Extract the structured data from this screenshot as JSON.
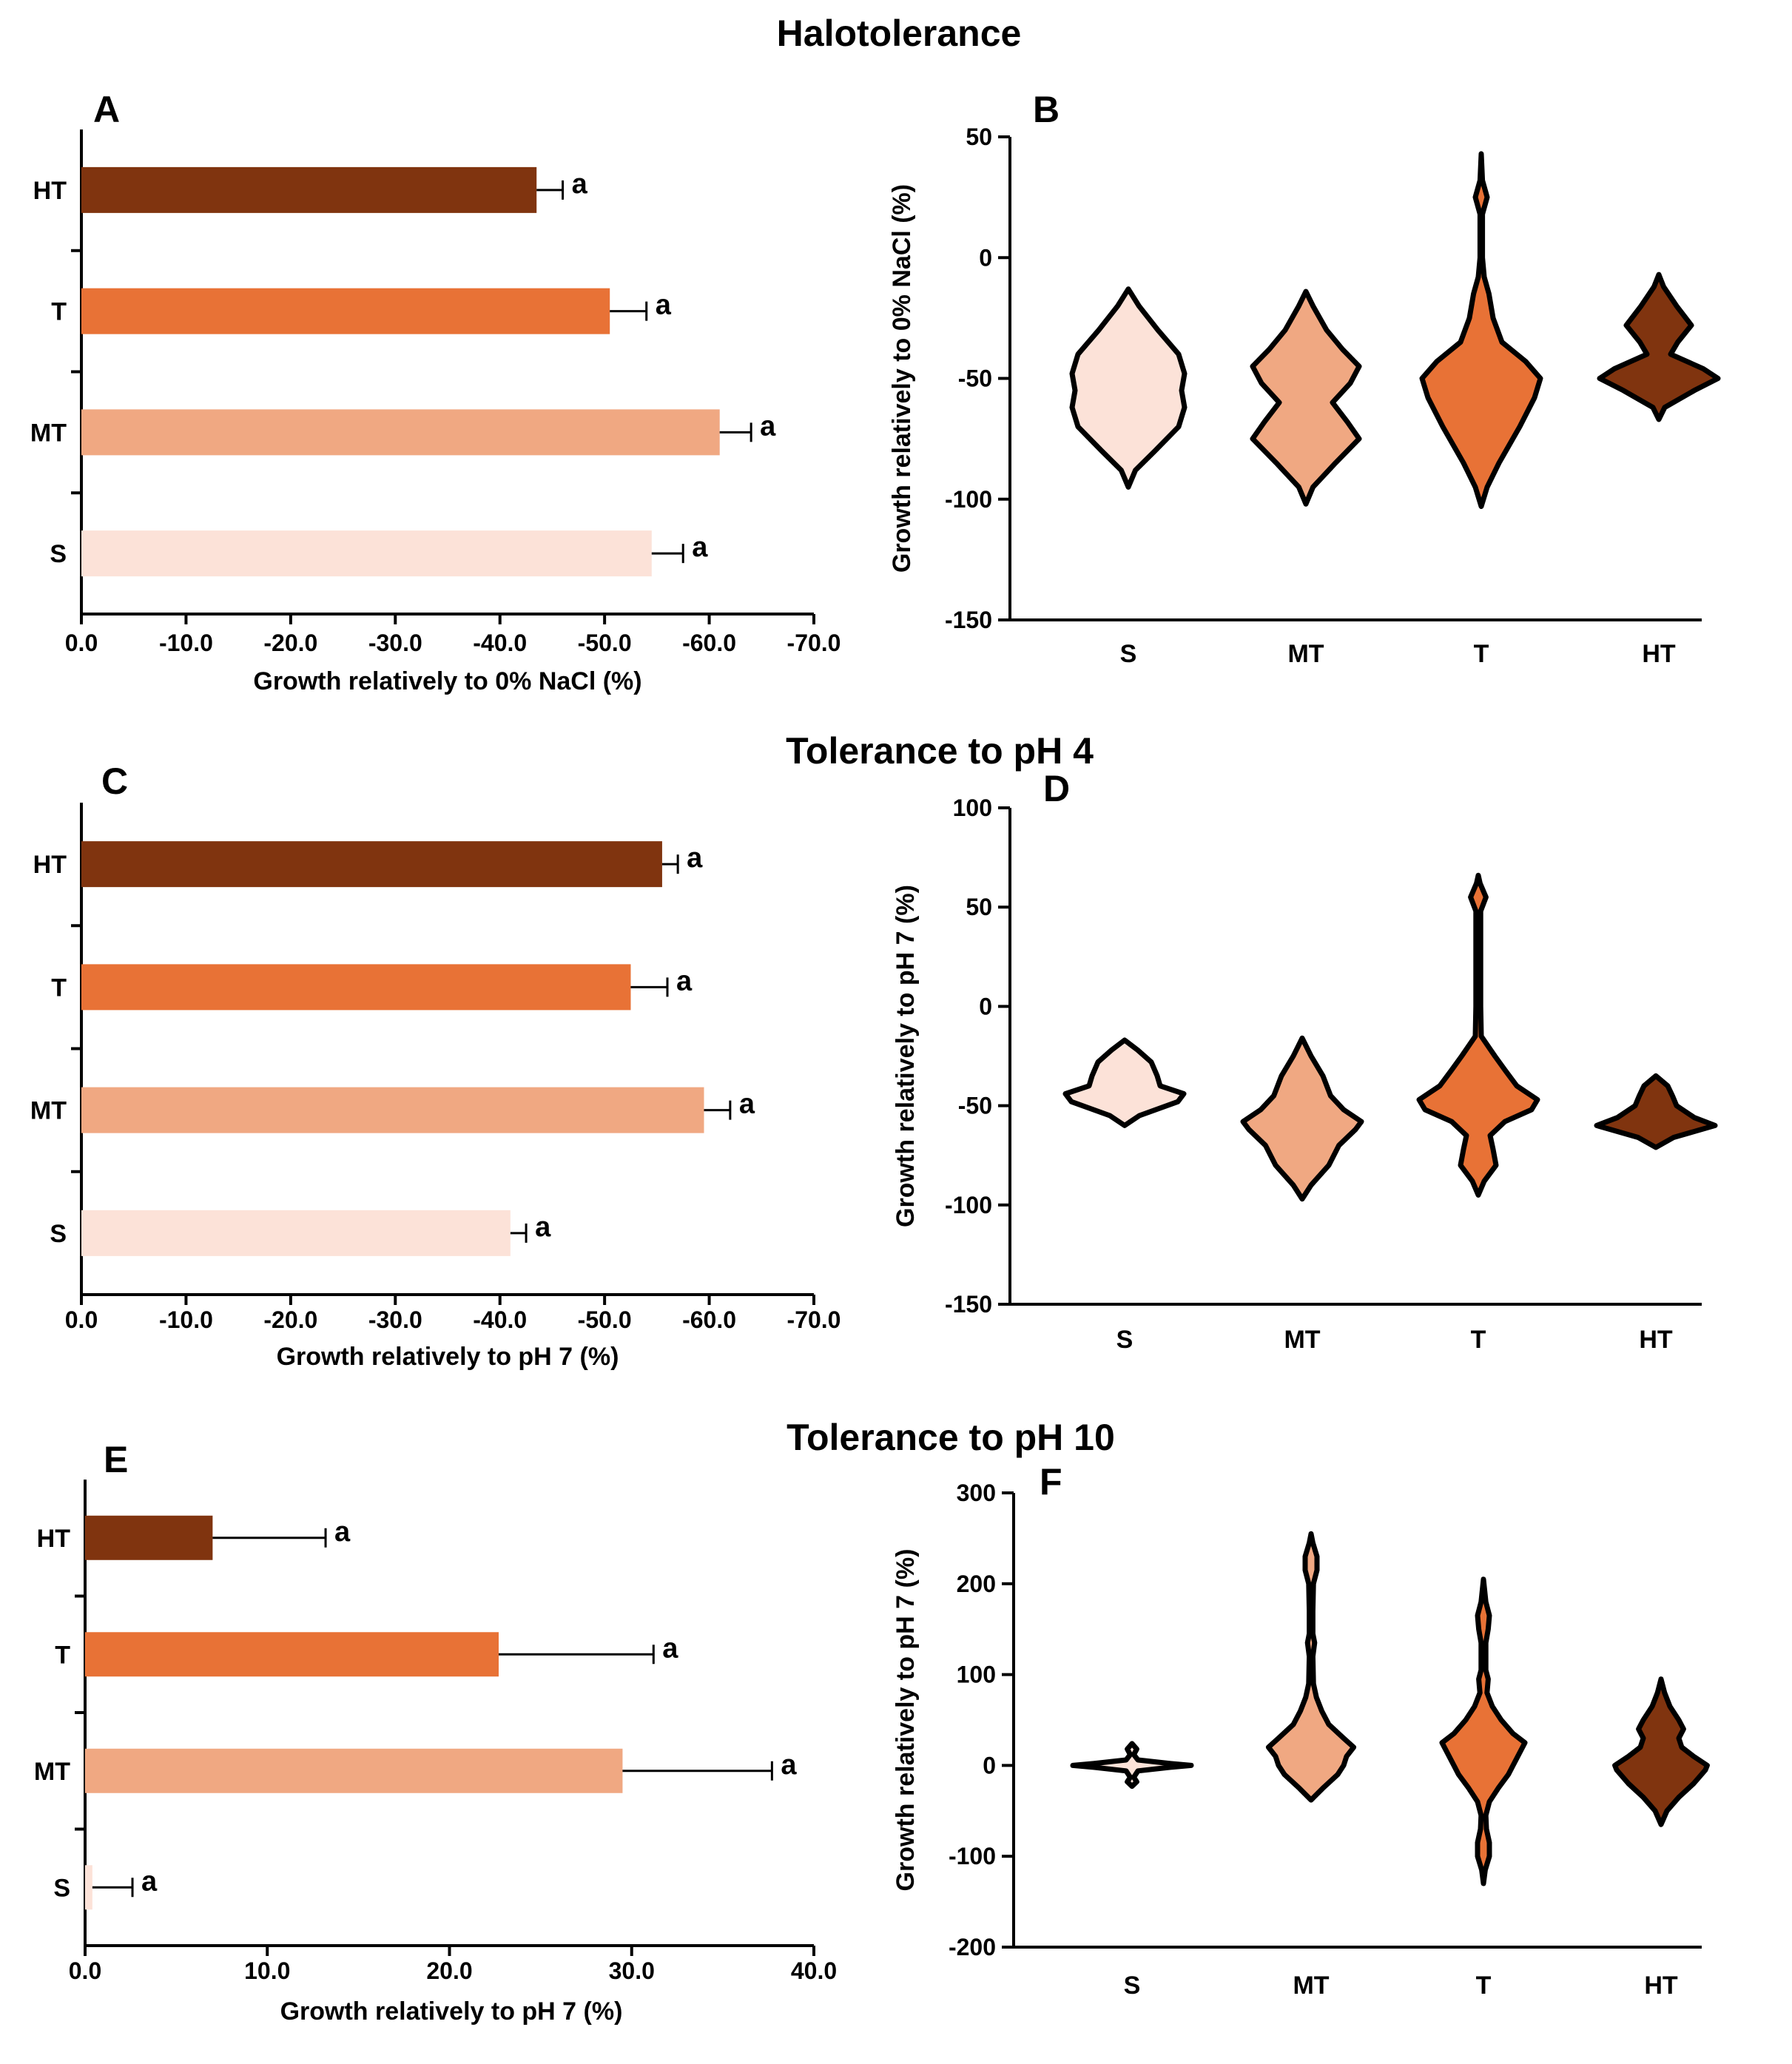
{
  "colors": {
    "S": "#fce2d8",
    "MT": "#f0a882",
    "T": "#e87236",
    "HT": "#80340f"
  },
  "sections": [
    {
      "title": "Halotolerance"
    },
    {
      "title": "Tolerance to pH 4"
    },
    {
      "title": "Tolerance to pH 10"
    }
  ],
  "chart_data": [
    {
      "panel": "A",
      "type": "bar",
      "orientation": "horizontal",
      "categories": [
        "HT",
        "T",
        "MT",
        "S"
      ],
      "values": [
        -43.5,
        -50.5,
        -61.0,
        -54.5
      ],
      "errors": [
        2.5,
        3.5,
        3.0,
        3.0
      ],
      "significance": [
        "a",
        "a",
        "a",
        "a"
      ],
      "xlabel": "Growth relatively to 0% NaCl (%)",
      "xlim": [
        0,
        -70
      ],
      "xticks": [
        0,
        -10,
        -20,
        -30,
        -40,
        -50,
        -60,
        -70
      ],
      "xtick_labels": [
        "0.0",
        "-10.0",
        "-20.0",
        "-30.0",
        "-40.0",
        "-50.0",
        "-60.0",
        "-70.0"
      ]
    },
    {
      "panel": "B",
      "type": "violin",
      "categories": [
        "S",
        "MT",
        "T",
        "HT"
      ],
      "ylabel": "Growth relatively to 0% NaCl (%)",
      "ylim": [
        -150,
        50
      ],
      "yticks": [
        50,
        0,
        -50,
        -100,
        -150
      ],
      "ytick_labels": [
        "50",
        "0",
        "-50",
        "-100",
        "-150"
      ],
      "distributions": [
        {
          "name": "S",
          "min": -95,
          "max": -13,
          "profile": [
            [
              -95,
              0
            ],
            [
              -88,
              0.12
            ],
            [
              -80,
              0.45
            ],
            [
              -70,
              0.85
            ],
            [
              -62,
              0.95
            ],
            [
              -55,
              0.9
            ],
            [
              -48,
              0.95
            ],
            [
              -40,
              0.85
            ],
            [
              -30,
              0.5
            ],
            [
              -20,
              0.18
            ],
            [
              -13,
              0
            ]
          ]
        },
        {
          "name": "MT",
          "min": -102,
          "max": -14,
          "profile": [
            [
              -102,
              0
            ],
            [
              -95,
              0.12
            ],
            [
              -85,
              0.5
            ],
            [
              -75,
              0.9
            ],
            [
              -68,
              0.7
            ],
            [
              -60,
              0.45
            ],
            [
              -52,
              0.75
            ],
            [
              -45,
              0.9
            ],
            [
              -38,
              0.62
            ],
            [
              -30,
              0.35
            ],
            [
              -20,
              0.12
            ],
            [
              -14,
              0
            ]
          ]
        },
        {
          "name": "T",
          "min": -103,
          "max": 43,
          "profile": [
            [
              -103,
              0
            ],
            [
              -95,
              0.1
            ],
            [
              -85,
              0.3
            ],
            [
              -70,
              0.65
            ],
            [
              -58,
              0.9
            ],
            [
              -50,
              1.0
            ],
            [
              -43,
              0.75
            ],
            [
              -35,
              0.35
            ],
            [
              -25,
              0.2
            ],
            [
              -15,
              0.13
            ],
            [
              -8,
              0.05
            ],
            [
              0,
              0.02
            ],
            [
              10,
              0.02
            ],
            [
              18,
              0.02
            ],
            [
              25,
              0.1
            ],
            [
              32,
              0.02
            ],
            [
              43,
              0
            ]
          ]
        },
        {
          "name": "HT",
          "min": -67,
          "max": -7,
          "profile": [
            [
              -67,
              0
            ],
            [
              -62,
              0.1
            ],
            [
              -55,
              0.6
            ],
            [
              -50,
              1.0
            ],
            [
              -46,
              0.75
            ],
            [
              -40,
              0.2
            ],
            [
              -35,
              0.32
            ],
            [
              -28,
              0.55
            ],
            [
              -20,
              0.3
            ],
            [
              -12,
              0.08
            ],
            [
              -7,
              0
            ]
          ]
        }
      ]
    },
    {
      "panel": "C",
      "type": "bar",
      "orientation": "horizontal",
      "categories": [
        "HT",
        "T",
        "MT",
        "S"
      ],
      "values": [
        -55.5,
        -52.5,
        -59.5,
        -41.0
      ],
      "errors": [
        1.5,
        3.5,
        2.5,
        1.5
      ],
      "significance": [
        "a",
        "a",
        "a",
        "a"
      ],
      "xlabel": "Growth relatively to pH 7 (%)",
      "xlim": [
        0,
        -70
      ],
      "xticks": [
        0,
        -10,
        -20,
        -30,
        -40,
        -50,
        -60,
        -70
      ],
      "xtick_labels": [
        "0.0",
        "-10.0",
        "-20.0",
        "-30.0",
        "-40.0",
        "-50.0",
        "-60.0",
        "-70.0"
      ]
    },
    {
      "panel": "D",
      "type": "violin",
      "categories": [
        "S",
        "MT",
        "T",
        "HT"
      ],
      "ylabel": "Growth relatively to pH 7 (%)",
      "ylim": [
        -150,
        100
      ],
      "yticks": [
        100,
        50,
        0,
        -50,
        -100,
        -150
      ],
      "ytick_labels": [
        "100",
        "50",
        "0",
        "-50",
        "-100",
        "-150"
      ],
      "distributions": [
        {
          "name": "S",
          "min": -60,
          "max": -17,
          "profile": [
            [
              -60,
              0
            ],
            [
              -55,
              0.25
            ],
            [
              -48,
              0.9
            ],
            [
              -44,
              1.0
            ],
            [
              -40,
              0.6
            ],
            [
              -35,
              0.55
            ],
            [
              -28,
              0.45
            ],
            [
              -22,
              0.22
            ],
            [
              -17,
              0
            ]
          ]
        },
        {
          "name": "MT",
          "min": -97,
          "max": -16,
          "profile": [
            [
              -97,
              0
            ],
            [
              -90,
              0.15
            ],
            [
              -80,
              0.45
            ],
            [
              -70,
              0.62
            ],
            [
              -62,
              0.9
            ],
            [
              -58,
              1.0
            ],
            [
              -52,
              0.7
            ],
            [
              -45,
              0.48
            ],
            [
              -35,
              0.35
            ],
            [
              -25,
              0.15
            ],
            [
              -16,
              0
            ]
          ]
        },
        {
          "name": "T",
          "min": -95,
          "max": 66,
          "profile": [
            [
              -95,
              0
            ],
            [
              -88,
              0.1
            ],
            [
              -80,
              0.3
            ],
            [
              -72,
              0.25
            ],
            [
              -65,
              0.2
            ],
            [
              -58,
              0.45
            ],
            [
              -52,
              0.9
            ],
            [
              -47,
              1.0
            ],
            [
              -40,
              0.65
            ],
            [
              -32,
              0.45
            ],
            [
              -25,
              0.28
            ],
            [
              -15,
              0.05
            ],
            [
              0,
              0.04
            ],
            [
              20,
              0.04
            ],
            [
              40,
              0.04
            ],
            [
              48,
              0.04
            ],
            [
              55,
              0.13
            ],
            [
              62,
              0.03
            ],
            [
              66,
              0
            ]
          ]
        },
        {
          "name": "HT",
          "min": -71,
          "max": -35,
          "profile": [
            [
              -71,
              0
            ],
            [
              -66,
              0.3
            ],
            [
              -60,
              1.0
            ],
            [
              -56,
              0.65
            ],
            [
              -50,
              0.35
            ],
            [
              -45,
              0.28
            ],
            [
              -40,
              0.2
            ],
            [
              -35,
              0
            ]
          ]
        }
      ]
    },
    {
      "panel": "E",
      "type": "bar",
      "orientation": "horizontal",
      "categories": [
        "HT",
        "T",
        "MT",
        "S"
      ],
      "values": [
        7.0,
        22.7,
        29.5,
        0.4
      ],
      "errors": [
        6.2,
        8.5,
        8.2,
        2.2
      ],
      "significance": [
        "a",
        "a",
        "a",
        "a"
      ],
      "xlabel": "Growth  relatively to pH 7 (%)",
      "xlim": [
        0,
        40
      ],
      "xticks": [
        0,
        10,
        20,
        30,
        40
      ],
      "xtick_labels": [
        "0.0",
        "10.0",
        "20.0",
        "30.0",
        "40.0"
      ]
    },
    {
      "panel": "F",
      "type": "violin",
      "categories": [
        "S",
        "MT",
        "T",
        "HT"
      ],
      "ylabel": "Growth  relatively to pH 7 (%)",
      "ylim": [
        -200,
        300
      ],
      "yticks": [
        300,
        200,
        100,
        0,
        -100,
        -200
      ],
      "ytick_labels": [
        "300",
        "200",
        "100",
        "0",
        "-100",
        "-200"
      ],
      "distributions": [
        {
          "name": "S",
          "min": -23,
          "max": 24,
          "profile": [
            [
              -23,
              0
            ],
            [
              -18,
              0.08
            ],
            [
              -13,
              0.03
            ],
            [
              -6,
              0.1
            ],
            [
              -2,
              0.65
            ],
            [
              0,
              1.0
            ],
            [
              2,
              0.65
            ],
            [
              6,
              0.1
            ],
            [
              12,
              0.03
            ],
            [
              18,
              0.08
            ],
            [
              24,
              0
            ]
          ]
        },
        {
          "name": "MT",
          "min": -38,
          "max": 255,
          "profile": [
            [
              -38,
              0
            ],
            [
              -25,
              0.2
            ],
            [
              -10,
              0.45
            ],
            [
              0,
              0.55
            ],
            [
              10,
              0.6
            ],
            [
              20,
              0.72
            ],
            [
              30,
              0.55
            ],
            [
              45,
              0.3
            ],
            [
              60,
              0.18
            ],
            [
              75,
              0.09
            ],
            [
              90,
              0.04
            ],
            [
              120,
              0.03
            ],
            [
              135,
              0.06
            ],
            [
              145,
              0.03
            ],
            [
              170,
              0.03
            ],
            [
              200,
              0.04
            ],
            [
              215,
              0.1
            ],
            [
              230,
              0.1
            ],
            [
              245,
              0.03
            ],
            [
              255,
              0
            ]
          ]
        },
        {
          "name": "T",
          "min": -130,
          "max": 205,
          "profile": [
            [
              -130,
              0
            ],
            [
              -115,
              0.03
            ],
            [
              -100,
              0.1
            ],
            [
              -85,
              0.1
            ],
            [
              -70,
              0.05
            ],
            [
              -55,
              0.04
            ],
            [
              -40,
              0.1
            ],
            [
              -25,
              0.25
            ],
            [
              -10,
              0.42
            ],
            [
              0,
              0.5
            ],
            [
              15,
              0.62
            ],
            [
              25,
              0.7
            ],
            [
              35,
              0.5
            ],
            [
              50,
              0.3
            ],
            [
              65,
              0.15
            ],
            [
              80,
              0.06
            ],
            [
              95,
              0.08
            ],
            [
              105,
              0.04
            ],
            [
              120,
              0.04
            ],
            [
              135,
              0.04
            ],
            [
              150,
              0.08
            ],
            [
              165,
              0.1
            ],
            [
              180,
              0.04
            ],
            [
              205,
              0
            ]
          ]
        },
        {
          "name": "HT",
          "min": -65,
          "max": 95,
          "profile": [
            [
              -65,
              0
            ],
            [
              -50,
              0.1
            ],
            [
              -35,
              0.3
            ],
            [
              -20,
              0.55
            ],
            [
              -5,
              0.75
            ],
            [
              0,
              0.78
            ],
            [
              10,
              0.55
            ],
            [
              20,
              0.35
            ],
            [
              30,
              0.3
            ],
            [
              40,
              0.38
            ],
            [
              50,
              0.3
            ],
            [
              65,
              0.15
            ],
            [
              80,
              0.06
            ],
            [
              95,
              0
            ]
          ]
        }
      ]
    }
  ]
}
